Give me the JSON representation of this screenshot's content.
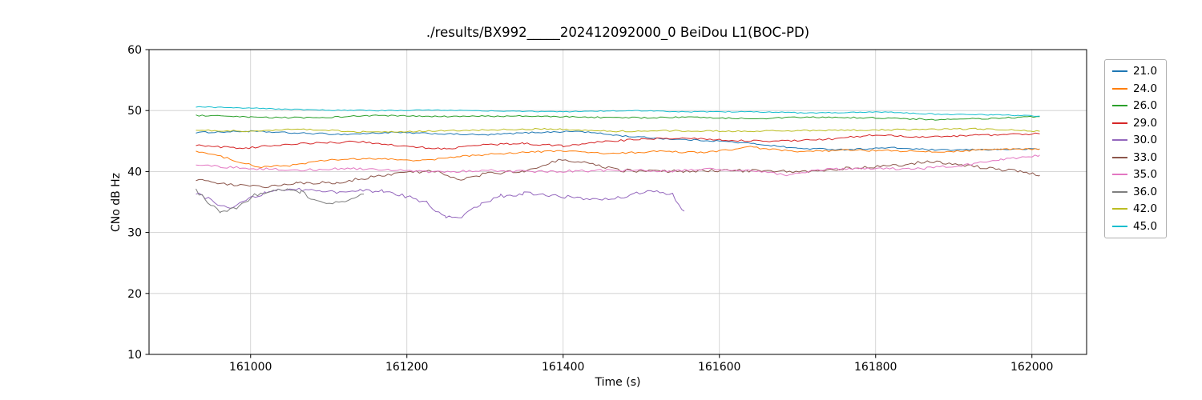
{
  "chart_data": {
    "type": "line",
    "title": "./results/BX992_____202412092000_0 BeiDou L1(BOC-PD)",
    "xlabel": "Time (s)",
    "ylabel": "CNo dB Hz",
    "xlim": [
      160870,
      162070
    ],
    "ylim": [
      10,
      60
    ],
    "xticks": [
      161000,
      161200,
      161400,
      161600,
      161800,
      162000
    ],
    "yticks": [
      10,
      20,
      30,
      40,
      50,
      60
    ],
    "grid": true,
    "legend_position": "right-outside",
    "grid_color": "#cccccc",
    "series": [
      {
        "name": "21.0",
        "color": "#1f77b4",
        "noise": 0.12,
        "points": [
          [
            160930,
            46.4
          ],
          [
            161000,
            46.6
          ],
          [
            161060,
            46.3
          ],
          [
            161120,
            46.1
          ],
          [
            161180,
            46.4
          ],
          [
            161240,
            46.2
          ],
          [
            161300,
            46.0
          ],
          [
            161360,
            46.4
          ],
          [
            161420,
            46.6
          ],
          [
            161480,
            45.8
          ],
          [
            161540,
            45.3
          ],
          [
            161600,
            45.0
          ],
          [
            161650,
            44.5
          ],
          [
            161700,
            43.8
          ],
          [
            161760,
            43.6
          ],
          [
            161820,
            43.9
          ],
          [
            161880,
            43.5
          ],
          [
            161940,
            43.6
          ],
          [
            162010,
            43.7
          ]
        ]
      },
      {
        "name": "24.0",
        "color": "#ff7f0e",
        "noise": 0.15,
        "points": [
          [
            160930,
            43.4
          ],
          [
            160970,
            42.2
          ],
          [
            161010,
            40.7
          ],
          [
            161050,
            41.0
          ],
          [
            161100,
            41.9
          ],
          [
            161160,
            42.1
          ],
          [
            161220,
            41.8
          ],
          [
            161280,
            42.6
          ],
          [
            161340,
            43.1
          ],
          [
            161400,
            43.4
          ],
          [
            161460,
            42.9
          ],
          [
            161520,
            43.3
          ],
          [
            161580,
            43.1
          ],
          [
            161640,
            44.0
          ],
          [
            161700,
            43.2
          ],
          [
            161760,
            43.5
          ],
          [
            161820,
            43.4
          ],
          [
            161880,
            43.2
          ],
          [
            161940,
            43.6
          ],
          [
            162010,
            43.7
          ]
        ]
      },
      {
        "name": "26.0",
        "color": "#2ca02c",
        "noise": 0.12,
        "points": [
          [
            160930,
            49.2
          ],
          [
            161000,
            48.9
          ],
          [
            161080,
            48.8
          ],
          [
            161160,
            49.2
          ],
          [
            161240,
            49.0
          ],
          [
            161320,
            49.1
          ],
          [
            161400,
            49.0
          ],
          [
            161480,
            48.8
          ],
          [
            161560,
            48.9
          ],
          [
            161640,
            48.7
          ],
          [
            161720,
            48.9
          ],
          [
            161800,
            48.8
          ],
          [
            161880,
            48.5
          ],
          [
            161950,
            48.7
          ],
          [
            162010,
            49.0
          ]
        ]
      },
      {
        "name": "29.0",
        "color": "#d62728",
        "noise": 0.15,
        "points": [
          [
            160930,
            44.3
          ],
          [
            160990,
            43.8
          ],
          [
            161040,
            44.4
          ],
          [
            161090,
            44.7
          ],
          [
            161140,
            44.9
          ],
          [
            161200,
            44.1
          ],
          [
            161250,
            43.7
          ],
          [
            161300,
            44.4
          ],
          [
            161350,
            44.6
          ],
          [
            161400,
            44.2
          ],
          [
            161450,
            44.9
          ],
          [
            161500,
            45.3
          ],
          [
            161560,
            45.5
          ],
          [
            161620,
            45.1
          ],
          [
            161680,
            45.0
          ],
          [
            161740,
            45.3
          ],
          [
            161800,
            46.0
          ],
          [
            161860,
            45.6
          ],
          [
            161920,
            45.9
          ],
          [
            162010,
            46.2
          ]
        ]
      },
      {
        "name": "30.0",
        "color": "#9467bd",
        "noise": 0.3,
        "points": [
          [
            160930,
            36.4
          ],
          [
            160950,
            35.3
          ],
          [
            160970,
            33.9
          ],
          [
            160990,
            35.1
          ],
          [
            161020,
            36.6
          ],
          [
            161050,
            37.2
          ],
          [
            161080,
            36.9
          ],
          [
            161110,
            36.6
          ],
          [
            161140,
            36.8
          ],
          [
            161170,
            36.9
          ],
          [
            161200,
            35.9
          ],
          [
            161225,
            34.9
          ],
          [
            161250,
            32.4
          ],
          [
            161270,
            32.6
          ],
          [
            161295,
            34.6
          ],
          [
            161320,
            36.0
          ],
          [
            161350,
            36.4
          ],
          [
            161390,
            36.1
          ],
          [
            161430,
            35.4
          ],
          [
            161470,
            35.7
          ],
          [
            161500,
            36.5
          ],
          [
            161520,
            36.9
          ],
          [
            161540,
            36.2
          ],
          [
            161555,
            33.5
          ]
        ]
      },
      {
        "name": "33.0",
        "color": "#8c564b",
        "noise": 0.25,
        "points": [
          [
            160930,
            38.7
          ],
          [
            160975,
            37.9
          ],
          [
            161015,
            37.5
          ],
          [
            161060,
            38.1
          ],
          [
            161110,
            38.2
          ],
          [
            161160,
            39.2
          ],
          [
            161200,
            39.9
          ],
          [
            161240,
            40.1
          ],
          [
            161265,
            38.6
          ],
          [
            161300,
            39.6
          ],
          [
            161350,
            40.1
          ],
          [
            161395,
            41.9
          ],
          [
            161430,
            41.4
          ],
          [
            161470,
            40.2
          ],
          [
            161530,
            40.0
          ],
          [
            161590,
            40.2
          ],
          [
            161650,
            40.1
          ],
          [
            161710,
            40.0
          ],
          [
            161770,
            40.6
          ],
          [
            161830,
            41.0
          ],
          [
            161870,
            41.7
          ],
          [
            161910,
            41.1
          ],
          [
            161950,
            40.4
          ],
          [
            161985,
            40.0
          ],
          [
            162010,
            39.4
          ]
        ]
      },
      {
        "name": "35.0",
        "color": "#e377c2",
        "noise": 0.2,
        "points": [
          [
            160930,
            41.0
          ],
          [
            161000,
            40.5
          ],
          [
            161060,
            40.2
          ],
          [
            161120,
            40.5
          ],
          [
            161180,
            40.3
          ],
          [
            161240,
            39.9
          ],
          [
            161300,
            40.2
          ],
          [
            161360,
            40.0
          ],
          [
            161420,
            40.1
          ],
          [
            161480,
            40.2
          ],
          [
            161540,
            40.1
          ],
          [
            161600,
            40.4
          ],
          [
            161650,
            40.0
          ],
          [
            161690,
            39.4
          ],
          [
            161730,
            40.3
          ],
          [
            161790,
            40.5
          ],
          [
            161850,
            40.4
          ],
          [
            161910,
            41.0
          ],
          [
            161960,
            41.9
          ],
          [
            162010,
            42.7
          ]
        ]
      },
      {
        "name": "36.0",
        "color": "#7f7f7f",
        "noise": 0.3,
        "points": [
          [
            160930,
            36.9
          ],
          [
            160945,
            35.1
          ],
          [
            160962,
            33.3
          ],
          [
            160985,
            34.2
          ],
          [
            161005,
            36.1
          ],
          [
            161035,
            37.1
          ],
          [
            161065,
            36.6
          ],
          [
            161085,
            35.1
          ],
          [
            161105,
            34.7
          ],
          [
            161125,
            35.1
          ],
          [
            161145,
            36.3
          ]
        ]
      },
      {
        "name": "42.0",
        "color": "#bcbd22",
        "noise": 0.12,
        "points": [
          [
            160930,
            46.8
          ],
          [
            161000,
            46.6
          ],
          [
            161060,
            47.0
          ],
          [
            161140,
            46.5
          ],
          [
            161220,
            46.6
          ],
          [
            161300,
            46.8
          ],
          [
            161380,
            47.0
          ],
          [
            161460,
            46.6
          ],
          [
            161540,
            46.7
          ],
          [
            161620,
            46.6
          ],
          [
            161700,
            46.7
          ],
          [
            161780,
            46.8
          ],
          [
            161860,
            46.9
          ],
          [
            161930,
            47.0
          ],
          [
            162010,
            46.6
          ]
        ]
      },
      {
        "name": "45.0",
        "color": "#17becf",
        "noise": 0.08,
        "points": [
          [
            160930,
            50.6
          ],
          [
            161000,
            50.4
          ],
          [
            161080,
            50.1
          ],
          [
            161160,
            50.0
          ],
          [
            161240,
            50.1
          ],
          [
            161320,
            49.9
          ],
          [
            161400,
            49.8
          ],
          [
            161480,
            50.0
          ],
          [
            161560,
            49.8
          ],
          [
            161640,
            49.8
          ],
          [
            161720,
            49.6
          ],
          [
            161800,
            49.8
          ],
          [
            161880,
            49.4
          ],
          [
            161950,
            49.3
          ],
          [
            162010,
            49.1
          ]
        ]
      }
    ]
  }
}
